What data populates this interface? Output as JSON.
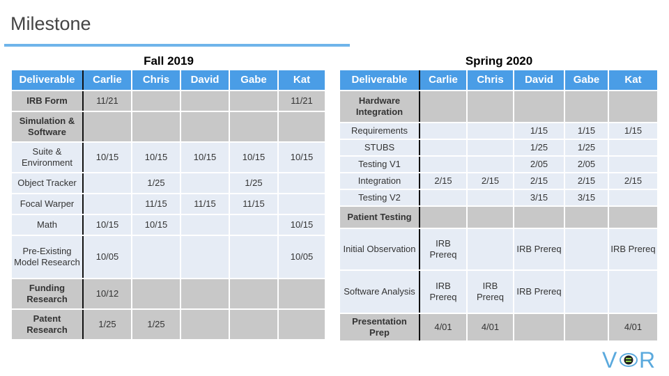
{
  "title": "Milestone",
  "fall": {
    "heading": "Fall 2019",
    "columns": [
      "Deliverable",
      "Carlie",
      "Chris",
      "David",
      "Gabe",
      "Kat"
    ],
    "rows": [
      {
        "kind": "group",
        "cells": [
          "IRB Form",
          "11/21",
          "",
          "",
          "",
          "11/21"
        ]
      },
      {
        "kind": "group",
        "cells": [
          "Simulation & Software",
          "",
          "",
          "",
          "",
          ""
        ]
      },
      {
        "kind": "item",
        "cells": [
          "Suite & Environment",
          "10/15",
          "10/15",
          "10/15",
          "10/15",
          "10/15"
        ]
      },
      {
        "kind": "item",
        "cells": [
          "Object Tracker",
          "",
          "1/25",
          "",
          "1/25",
          ""
        ]
      },
      {
        "kind": "item",
        "cells": [
          "Focal Warper",
          "",
          "11/15",
          "11/15",
          "11/15",
          ""
        ]
      },
      {
        "kind": "item",
        "cells": [
          "Math",
          "10/15",
          "10/15",
          "",
          "",
          "10/15"
        ]
      },
      {
        "kind": "item",
        "cells": [
          "Pre-Existing Model Research",
          "10/05",
          "",
          "",
          "",
          "10/05"
        ]
      },
      {
        "kind": "group",
        "cells": [
          "Funding Research",
          "10/12",
          "",
          "",
          "",
          ""
        ]
      },
      {
        "kind": "group",
        "cells": [
          "Patent Research",
          "1/25",
          "1/25",
          "",
          "",
          ""
        ]
      }
    ]
  },
  "spring": {
    "heading": "Spring 2020",
    "columns": [
      "Deliverable",
      "Carlie",
      "Chris",
      "David",
      "Gabe",
      "Kat"
    ],
    "rows": [
      {
        "kind": "group",
        "cells": [
          "Hardware Integration",
          "",
          "",
          "",
          "",
          ""
        ]
      },
      {
        "kind": "item",
        "cells": [
          "Requirements",
          "",
          "",
          "1/15",
          "1/15",
          "1/15"
        ]
      },
      {
        "kind": "item",
        "cells": [
          "STUBS",
          "",
          "",
          "1/25",
          "1/25",
          ""
        ]
      },
      {
        "kind": "item",
        "cells": [
          "Testing V1",
          "",
          "",
          "2/05",
          "2/05",
          ""
        ]
      },
      {
        "kind": "item",
        "cells": [
          "Integration",
          "2/15",
          "2/15",
          "2/15",
          "2/15",
          "2/15"
        ]
      },
      {
        "kind": "item",
        "cells": [
          "Testing V2",
          "",
          "",
          "3/15",
          "3/15",
          ""
        ]
      },
      {
        "kind": "group",
        "cells": [
          "Patient Testing",
          "",
          "",
          "",
          "",
          ""
        ]
      },
      {
        "kind": "item",
        "cells": [
          "Initial Observation",
          "IRB Prereq",
          "",
          "IRB Prereq",
          "",
          "IRB Prereq"
        ]
      },
      {
        "kind": "item",
        "cells": [
          "Software Analysis",
          "IRB Prereq",
          "IRB Prereq",
          "IRB Prereq",
          "",
          ""
        ]
      },
      {
        "kind": "group",
        "cells": [
          "Presentation Prep",
          "4/01",
          "4/01",
          "",
          "",
          "4/01"
        ]
      }
    ]
  },
  "logo": {
    "text": "VR",
    "accent": "#8bd04a",
    "color": "#5aa9dd"
  }
}
